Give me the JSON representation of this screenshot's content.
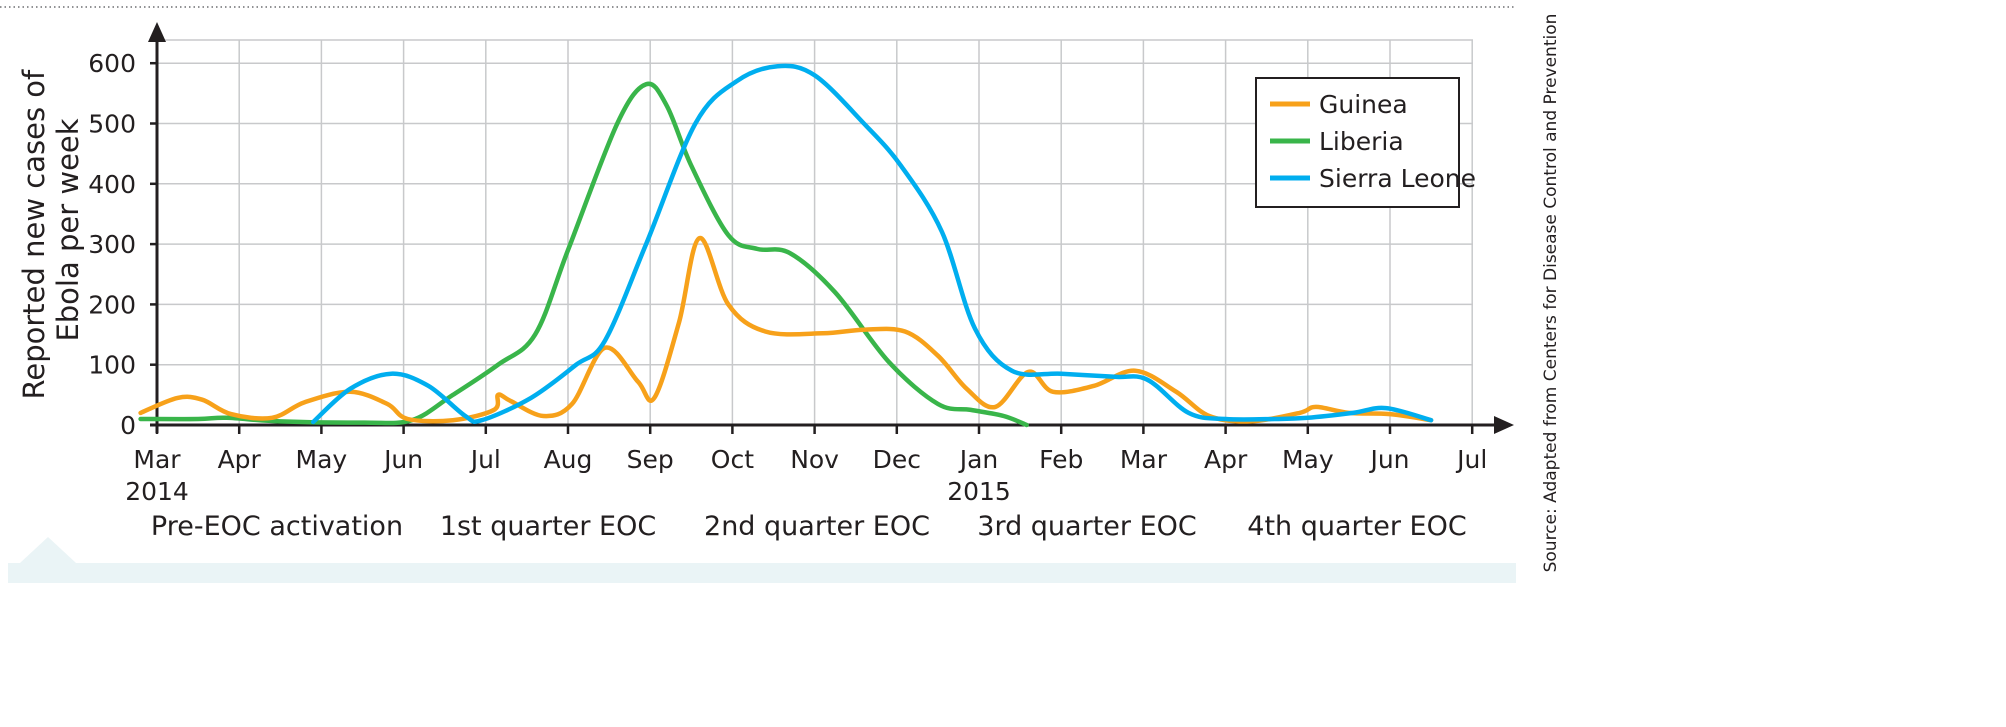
{
  "chart_data": {
    "type": "line",
    "ylabel": [
      "Reported new cases of",
      "Ebola per week"
    ],
    "ylim": [
      0,
      640
    ],
    "yticks": [
      0,
      100,
      200,
      300,
      400,
      500,
      600
    ],
    "xlim": [
      0,
      16
    ],
    "xticks": [
      {
        "label": "Mar",
        "year": "2014"
      },
      {
        "label": "Apr"
      },
      {
        "label": "May"
      },
      {
        "label": "Jun"
      },
      {
        "label": "Jul"
      },
      {
        "label": "Aug"
      },
      {
        "label": "Sep"
      },
      {
        "label": "Oct"
      },
      {
        "label": "Nov"
      },
      {
        "label": "Dec"
      },
      {
        "label": "Jan",
        "year": "2015"
      },
      {
        "label": "Feb"
      },
      {
        "label": "Mar"
      },
      {
        "label": "Apr"
      },
      {
        "label": "May"
      },
      {
        "label": "Jun"
      },
      {
        "label": "Jul"
      }
    ],
    "grid": true,
    "legend_position": "top-right",
    "series": [
      {
        "name": "Guinea",
        "color": "#f7a11a",
        "points": [
          [
            -0.2,
            20
          ],
          [
            0.25,
            45
          ],
          [
            0.55,
            42
          ],
          [
            0.9,
            18
          ],
          [
            1.4,
            12
          ],
          [
            1.8,
            38
          ],
          [
            2.35,
            55
          ],
          [
            2.8,
            35
          ],
          [
            3.05,
            10
          ],
          [
            3.6,
            8
          ],
          [
            4.1,
            25
          ],
          [
            4.15,
            50
          ],
          [
            4.3,
            40
          ],
          [
            4.7,
            15
          ],
          [
            5.05,
            35
          ],
          [
            5.45,
            128
          ],
          [
            5.85,
            72
          ],
          [
            6.05,
            45
          ],
          [
            6.35,
            170
          ],
          [
            6.6,
            310
          ],
          [
            6.95,
            200
          ],
          [
            7.4,
            155
          ],
          [
            8.1,
            152
          ],
          [
            8.6,
            158
          ],
          [
            9.1,
            155
          ],
          [
            9.5,
            115
          ],
          [
            9.85,
            60
          ],
          [
            10.2,
            30
          ],
          [
            10.6,
            88
          ],
          [
            10.9,
            55
          ],
          [
            11.4,
            65
          ],
          [
            11.9,
            90
          ],
          [
            12.4,
            55
          ],
          [
            12.8,
            15
          ],
          [
            13.3,
            6
          ],
          [
            13.9,
            20
          ],
          [
            14.1,
            30
          ],
          [
            14.5,
            20
          ],
          [
            15.0,
            18
          ],
          [
            15.5,
            8
          ]
        ]
      },
      {
        "name": "Liberia",
        "color": "#39b54a",
        "points": [
          [
            -0.2,
            10
          ],
          [
            0.5,
            10
          ],
          [
            0.85,
            12
          ],
          [
            1.5,
            6
          ],
          [
            2.5,
            4
          ],
          [
            3.1,
            8
          ],
          [
            3.6,
            50
          ],
          [
            4.15,
            100
          ],
          [
            4.6,
            150
          ],
          [
            5.0,
            290
          ],
          [
            5.6,
            500
          ],
          [
            5.95,
            565
          ],
          [
            6.2,
            530
          ],
          [
            6.5,
            430
          ],
          [
            6.95,
            315
          ],
          [
            7.3,
            292
          ],
          [
            7.7,
            285
          ],
          [
            8.25,
            220
          ],
          [
            8.9,
            105
          ],
          [
            9.5,
            35
          ],
          [
            9.9,
            25
          ],
          [
            10.3,
            15
          ],
          [
            10.58,
            0
          ]
        ]
      },
      {
        "name": "Sierra Leone",
        "color": "#00aeef",
        "points": [
          [
            1.9,
            5
          ],
          [
            2.35,
            60
          ],
          [
            2.85,
            85
          ],
          [
            3.3,
            65
          ],
          [
            3.75,
            15
          ],
          [
            3.95,
            8
          ],
          [
            4.55,
            45
          ],
          [
            5.1,
            100
          ],
          [
            5.45,
            140
          ],
          [
            5.95,
            300
          ],
          [
            6.55,
            500
          ],
          [
            7.05,
            570
          ],
          [
            7.55,
            595
          ],
          [
            8.0,
            580
          ],
          [
            8.6,
            500
          ],
          [
            9.05,
            430
          ],
          [
            9.55,
            320
          ],
          [
            9.95,
            160
          ],
          [
            10.4,
            90
          ],
          [
            11.0,
            85
          ],
          [
            11.65,
            80
          ],
          [
            12.05,
            75
          ],
          [
            12.55,
            20
          ],
          [
            13.0,
            10
          ],
          [
            13.6,
            10
          ],
          [
            14.0,
            12
          ],
          [
            14.55,
            20
          ],
          [
            14.95,
            28
          ],
          [
            15.5,
            8
          ]
        ]
      }
    ],
    "periods": [
      "Pre-EOC activation",
      "1st quarter EOC",
      "2nd quarter EOC",
      "3rd quarter EOC",
      "4th quarter EOC"
    ],
    "source": "Source:  Adapted from Centers for Disease Control and Prevention"
  }
}
